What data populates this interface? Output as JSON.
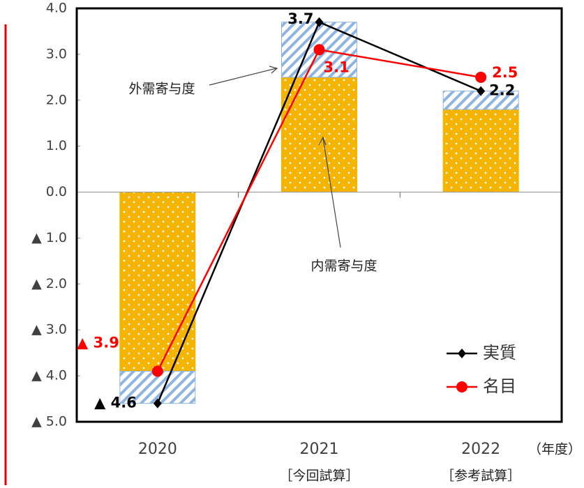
{
  "chart_data": {
    "type": "bar_line",
    "categories": [
      "2020",
      "2021",
      "2022"
    ],
    "category_sublabels": [
      null,
      "［今回試算］",
      "［参考試算］"
    ],
    "x_unit": "（年度）",
    "ylim": [
      -5,
      4
    ],
    "yticks": [
      {
        "value": 4,
        "label": "4.0"
      },
      {
        "value": 3,
        "label": "3.0"
      },
      {
        "value": 2,
        "label": "2.0"
      },
      {
        "value": 1,
        "label": "1.0"
      },
      {
        "value": 0,
        "label": "0.0"
      },
      {
        "value": -1,
        "label": "▲ 1.0"
      },
      {
        "value": -2,
        "label": "▲ 2.0"
      },
      {
        "value": -3,
        "label": "▲ 3.0"
      },
      {
        "value": -4,
        "label": "▲ 4.0"
      },
      {
        "value": -5,
        "label": "▲ 5.0"
      }
    ],
    "bar_series": [
      {
        "name": "内需寄与度",
        "color": "#f5b400",
        "values": [
          -3.9,
          2.5,
          1.8
        ]
      },
      {
        "name": "外需寄与度",
        "color": "#8fb4e0",
        "values": [
          -0.7,
          1.2,
          0.4
        ]
      }
    ],
    "line_series": [
      {
        "name": "実質",
        "color": "#000000",
        "marker": "diamond",
        "values": [
          -4.6,
          3.7,
          2.2
        ],
        "value_labels": [
          "▲ 4.6",
          "3.7",
          "2.2"
        ]
      },
      {
        "name": "名目",
        "color": "#ff0000",
        "marker": "circle",
        "values": [
          -3.9,
          3.1,
          2.5
        ],
        "value_labels": [
          "▲ 3.9",
          "3.1",
          "2.5"
        ]
      }
    ]
  }
}
